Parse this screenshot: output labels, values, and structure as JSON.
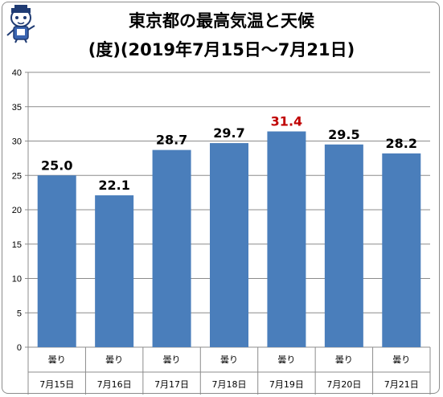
{
  "chart_data": {
    "type": "bar",
    "title": "東京都の最高気温と天候",
    "subtitle": "(度)(2019年7月15日～7月21日)",
    "categories": [
      "7月15日",
      "7月16日",
      "7月17日",
      "7月18日",
      "7月19日",
      "7月20日",
      "7月21日"
    ],
    "weather": [
      "曇り",
      "曇り",
      "曇り",
      "曇り",
      "曇り",
      "曇り",
      "曇り"
    ],
    "values": [
      25.0,
      22.1,
      28.7,
      29.7,
      31.4,
      29.5,
      28.2
    ],
    "value_labels": [
      "25.0",
      "22.1",
      "28.7",
      "29.7",
      "31.4",
      "29.5",
      "28.2"
    ],
    "ylim": [
      0,
      40
    ],
    "yticks": [
      "0",
      "5",
      "10",
      "15",
      "20",
      "25",
      "30",
      "35",
      "40"
    ],
    "grid": true,
    "colors": {
      "bar": "#4a7ebb",
      "highlight_label": "#c00000",
      "label": "#000000",
      "grid": "#8c8c8c"
    },
    "highlight_index": 4
  },
  "icons": {
    "mascot": "mascot-icon"
  }
}
